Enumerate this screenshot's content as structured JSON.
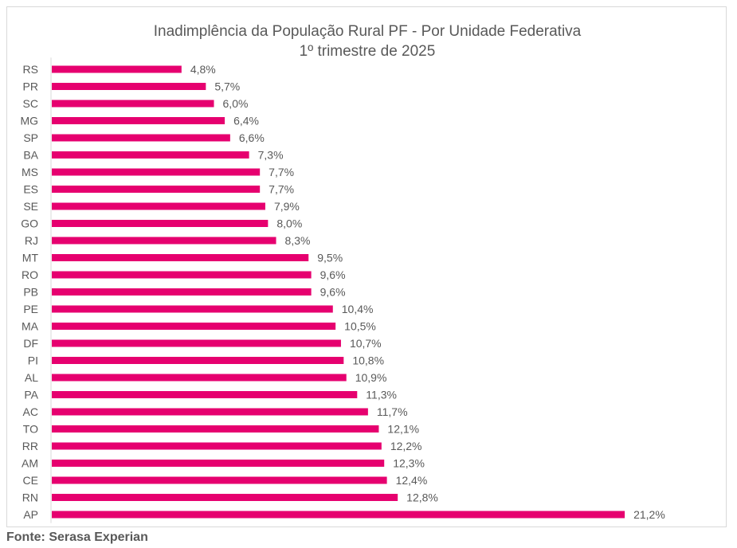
{
  "chart_data": {
    "type": "bar",
    "orientation": "horizontal",
    "title": "Inadimplência da População Rural PF - Por Unidade Federativa",
    "subtitle": "1º trimestre de 2025",
    "categories": [
      "RS",
      "PR",
      "SC",
      "MG",
      "SP",
      "BA",
      "MS",
      "ES",
      "SE",
      "GO",
      "RJ",
      "MT",
      "RO",
      "PB",
      "PE",
      "MA",
      "DF",
      "PI",
      "AL",
      "PA",
      "AC",
      "TO",
      "RR",
      "AM",
      "CE",
      "RN",
      "AP"
    ],
    "values": [
      4.8,
      5.7,
      6.0,
      6.4,
      6.6,
      7.3,
      7.7,
      7.7,
      7.9,
      8.0,
      8.3,
      9.5,
      9.6,
      9.6,
      10.4,
      10.5,
      10.7,
      10.8,
      10.9,
      11.3,
      11.7,
      12.1,
      12.2,
      12.3,
      12.4,
      12.8,
      21.2
    ],
    "labels": [
      "4,8%",
      "5,7%",
      "6,0%",
      "6,4%",
      "6,6%",
      "7,3%",
      "7,7%",
      "7,7%",
      "7,9%",
      "8,0%",
      "8,3%",
      "9,5%",
      "9,6%",
      "9,6%",
      "10,4%",
      "10,5%",
      "10,7%",
      "10,8%",
      "10,9%",
      "11,3%",
      "11,7%",
      "12,1%",
      "12,2%",
      "12,3%",
      "12,4%",
      "12,8%",
      "21,2%"
    ],
    "xlim": [
      0,
      25
    ],
    "grid": false,
    "bar_color": "#e6006f",
    "label_color": "#595959"
  },
  "source": "Fonte: Serasa Experian"
}
